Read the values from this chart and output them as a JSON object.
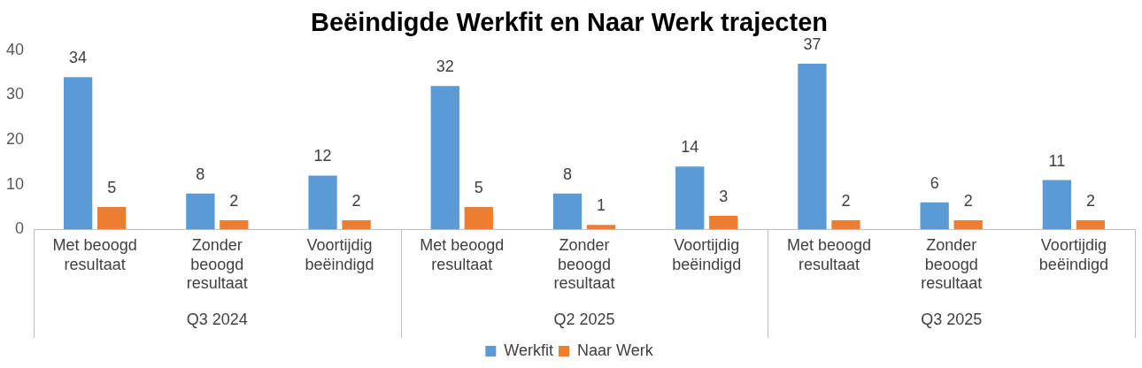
{
  "chart_data": {
    "type": "bar",
    "title": "Beëindigde Werkfit en Naar Werk trajecten",
    "categories": [
      "Met beoogd resultaat",
      "Zonder beoogd resultaat",
      "Voortijdig beëindigd",
      "Met beoogd resultaat",
      "Zonder beoogd resultaat",
      "Voortijdig beëindigd",
      "Met beoogd resultaat",
      "Zonder beoogd resultaat",
      "Voortijdig beëindigd"
    ],
    "series": [
      {
        "name": "Werkfit",
        "color": "#5b9bd5",
        "values": [
          34,
          8,
          12,
          32,
          8,
          14,
          37,
          6,
          11
        ]
      },
      {
        "name": "Naar Werk",
        "color": "#ed7d31",
        "values": [
          5,
          2,
          2,
          5,
          1,
          3,
          2,
          2,
          2
        ]
      }
    ],
    "annotations": [
      "Q3 2024",
      "Q2 2025",
      "Q3 2025"
    ],
    "ylim": [
      0,
      40
    ],
    "yticks": [
      0,
      10,
      20,
      30,
      40
    ],
    "grid": false,
    "data_labels": true,
    "legend": "bottom"
  }
}
